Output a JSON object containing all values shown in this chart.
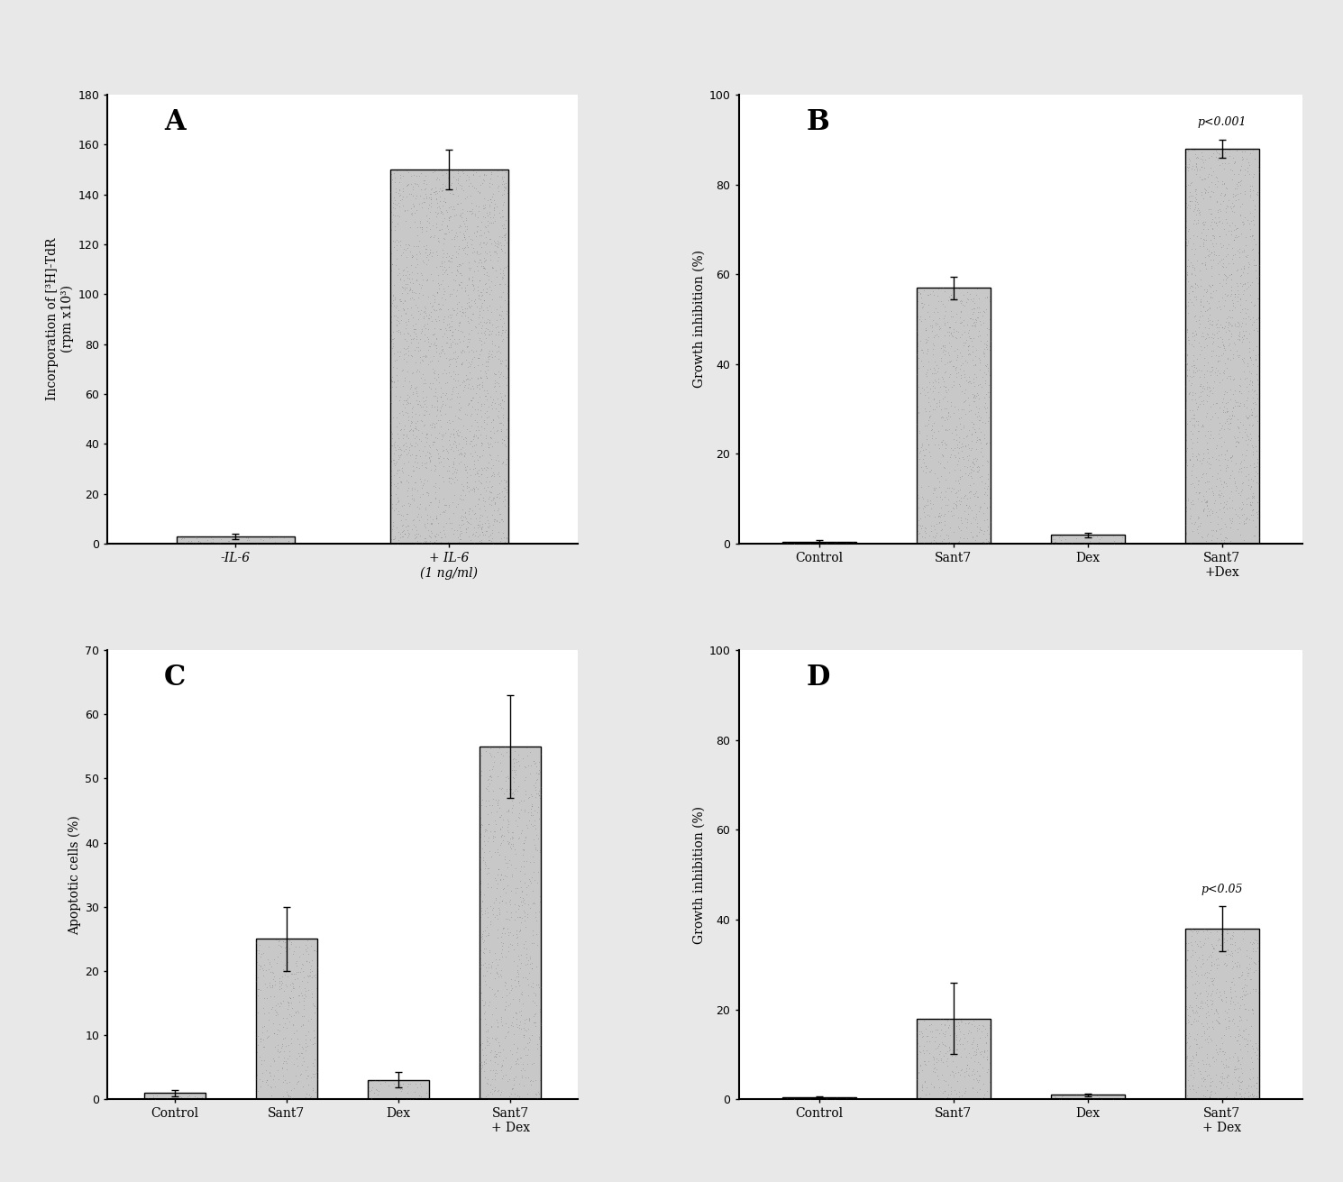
{
  "panel_A": {
    "label": "A",
    "categories": [
      "-IL-6",
      "+ IL-6\n(1 ng/ml)"
    ],
    "values": [
      3,
      150
    ],
    "errors": [
      1,
      8
    ],
    "ylabel": "Incorporation of [³H]-TdR\n(rpm x10³)",
    "ylim": [
      0,
      180
    ],
    "yticks": [
      0,
      20,
      40,
      60,
      80,
      100,
      120,
      140,
      160,
      180
    ],
    "annotation": null,
    "annot_bar": null,
    "italic_xticks": true
  },
  "panel_B": {
    "label": "B",
    "categories": [
      "Control",
      "Sant7",
      "Dex",
      "Sant7\n+Dex"
    ],
    "values": [
      0.5,
      57,
      2,
      88
    ],
    "errors": [
      0.3,
      2.5,
      0.5,
      2
    ],
    "ylabel": "Growth inhibition (%)",
    "ylim": [
      0,
      100
    ],
    "yticks": [
      0,
      20,
      40,
      60,
      80,
      100
    ],
    "annotation": "p<0.001",
    "annot_bar": 3,
    "italic_xticks": false
  },
  "panel_C": {
    "label": "C",
    "categories": [
      "Control",
      "Sant7",
      "Dex",
      "Sant7\n+ Dex"
    ],
    "values": [
      1,
      25,
      3,
      55
    ],
    "errors": [
      0.5,
      5,
      1.2,
      8
    ],
    "ylabel": "Apoptotic cells (%)",
    "ylim": [
      0,
      70
    ],
    "yticks": [
      0,
      10,
      20,
      30,
      40,
      50,
      60,
      70
    ],
    "annotation": null,
    "annot_bar": null,
    "italic_xticks": false
  },
  "panel_D": {
    "label": "D",
    "categories": [
      "Control",
      "Sant7",
      "Dex",
      "Sant7\n+ Dex"
    ],
    "values": [
      0.5,
      18,
      1,
      38
    ],
    "errors": [
      0.2,
      8,
      0.3,
      5
    ],
    "ylabel": "Growth inhibition (%)",
    "ylim": [
      0,
      100
    ],
    "yticks": [
      0,
      20,
      40,
      60,
      80,
      100
    ],
    "annotation": "p<0.05",
    "annot_bar": 3,
    "italic_xticks": false
  },
  "bar_color": "#c8c8c8",
  "background_color": "#e8e8e8",
  "plot_bg_color": "#ffffff",
  "tick_fontsize": 9,
  "ylabel_fontsize": 10,
  "xtick_fontsize": 10,
  "panel_label_fontsize": 22,
  "annot_fontsize": 9
}
